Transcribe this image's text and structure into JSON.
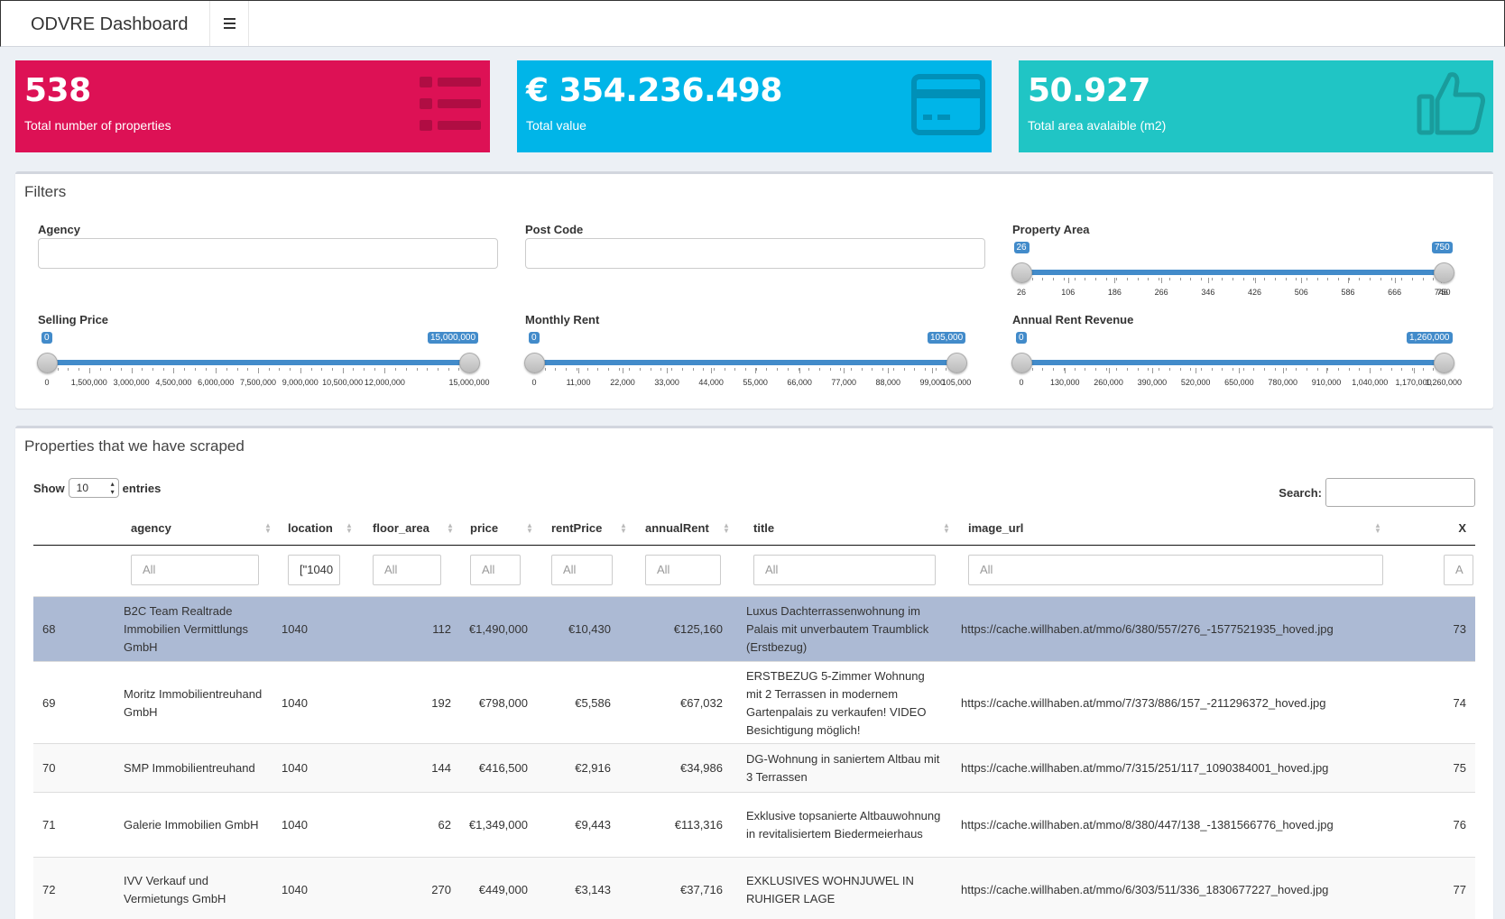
{
  "header": {
    "brand": "ODVRE Dashboard",
    "menu_icon": "hamburger-icon"
  },
  "value_boxes": [
    {
      "value": "538",
      "label": "Total number of properties",
      "color": "#dd1155",
      "icon": "list-icon"
    },
    {
      "value": "€ 354.236.498",
      "label": "Total value",
      "color": "#00b5e8",
      "icon": "credit-card-icon"
    },
    {
      "value": "50.927",
      "label": "Total area avalaible (m2)",
      "color": "#20c5c5",
      "icon": "thumbs-up-icon"
    }
  ],
  "filters": {
    "title": "Filters",
    "agency_label": "Agency",
    "postcode_label": "Post Code",
    "sliders": [
      {
        "label": "Property Area",
        "min": 26,
        "max": 750,
        "from_label": "26",
        "to_label": "750",
        "ticks": [
          "26",
          "106",
          "186",
          "266",
          "346",
          "426",
          "506",
          "586",
          "666",
          "746",
          "750"
        ]
      },
      {
        "label": "Selling Price",
        "min": 0,
        "max": 15000000,
        "from_label": "0",
        "to_label": "15,000,000",
        "ticks": [
          "0",
          "1,500,000",
          "3,000,000",
          "4,500,000",
          "6,000,000",
          "7,500,000",
          "9,000,000",
          "10,500,000",
          "12,000,000",
          "15,000,000"
        ]
      },
      {
        "label": "Monthly Rent",
        "min": 0,
        "max": 105000,
        "from_label": "0",
        "to_label": "105,000",
        "ticks": [
          "0",
          "11,000",
          "22,000",
          "33,000",
          "44,000",
          "55,000",
          "66,000",
          "77,000",
          "88,000",
          "99,000",
          "105,000"
        ]
      },
      {
        "label": "Annual Rent Revenue",
        "min": 0,
        "max": 1260000,
        "from_label": "0",
        "to_label": "1,260,000",
        "ticks": [
          "0",
          "130,000",
          "260,000",
          "390,000",
          "520,000",
          "650,000",
          "780,000",
          "910,000",
          "1,040,000",
          "1,170,000",
          "1,260,000"
        ]
      }
    ]
  },
  "table": {
    "title": "Properties that we have scraped",
    "show_label": "Show",
    "entries_value": "10",
    "entries_label": "entries",
    "search_label": "Search:",
    "columns": [
      "agency",
      "location",
      "floor_area",
      "price",
      "rentPrice",
      "annualRent",
      "title",
      "image_url",
      "X"
    ],
    "filter_placeholders": [
      "All",
      "[\"1040",
      "All",
      "All",
      "All",
      "All",
      "All",
      "All",
      "A"
    ],
    "rows": [
      {
        "id": "68",
        "agency": "B2C Team Realtrade Immobilien Vermittlungs GmbH",
        "location": "1040",
        "floor_area": "112",
        "price": "€1,490,000",
        "rentPrice": "€10,430",
        "annualRent": "€125,160",
        "title": "Luxus Dachterrassenwohnung im Palais mit unverbautem Traumblick (Erstbezug)",
        "image_url": "https://cache.willhaben.at/mmo/6/380/557/276_-1577521935_hoved.jpg",
        "x": "73"
      },
      {
        "id": "69",
        "agency": "Moritz Immobilientreuhand GmbH",
        "location": "1040",
        "floor_area": "192",
        "price": "€798,000",
        "rentPrice": "€5,586",
        "annualRent": "€67,032",
        "title": "ERSTBEZUG 5-Zimmer Wohnung mit 2 Terrassen in modernem Gartenpalais zu verkaufen! VIDEO Besichtigung möglich!",
        "image_url": "https://cache.willhaben.at/mmo/7/373/886/157_-211296372_hoved.jpg",
        "x": "74"
      },
      {
        "id": "70",
        "agency": "SMP Immobilientreuhand",
        "location": "1040",
        "floor_area": "144",
        "price": "€416,500",
        "rentPrice": "€2,916",
        "annualRent": "€34,986",
        "title": "DG-Wohnung in saniertem Altbau mit 3 Terrassen",
        "image_url": "https://cache.willhaben.at/mmo/7/315/251/117_1090384001_hoved.jpg",
        "x": "75"
      },
      {
        "id": "71",
        "agency": "Galerie Immobilien GmbH",
        "location": "1040",
        "floor_area": "62",
        "price": "€1,349,000",
        "rentPrice": "€9,443",
        "annualRent": "€113,316",
        "title": "Exklusive topsanierte Altbauwohnung in revitalisiertem Biedermeierhaus",
        "image_url": "https://cache.willhaben.at/mmo/8/380/447/138_-1381566776_hoved.jpg",
        "x": "76"
      },
      {
        "id": "72",
        "agency": "IVV Verkauf und Vermietungs GmbH",
        "location": "1040",
        "floor_area": "270",
        "price": "€449,000",
        "rentPrice": "€3,143",
        "annualRent": "€37,716",
        "title": "EXKLUSIVES WOHNJUWEL IN RUHIGER LAGE",
        "image_url": "https://cache.willhaben.at/mmo/6/303/511/336_1830677227_hoved.jpg",
        "x": "77"
      }
    ]
  }
}
